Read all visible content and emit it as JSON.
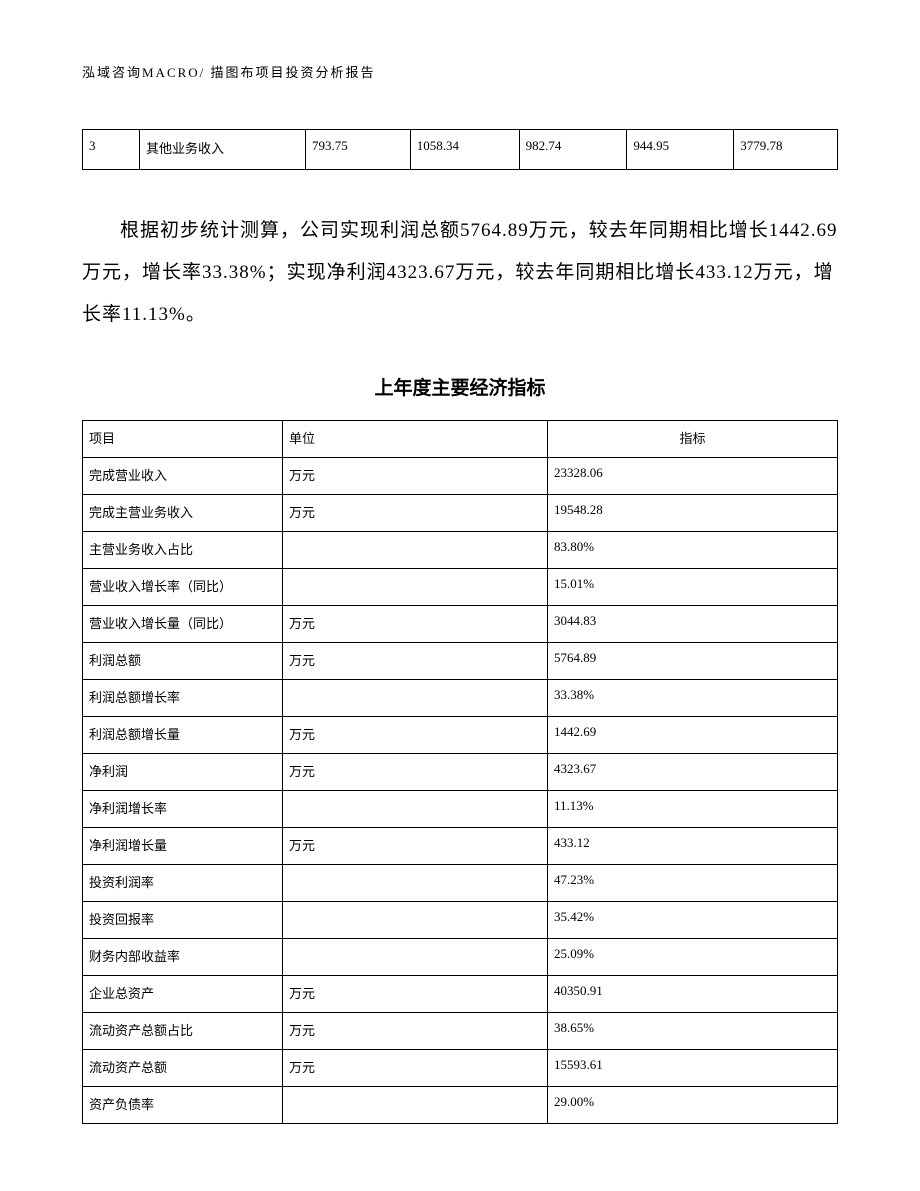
{
  "header": {
    "text": "泓域咨询MACRO/    描图布项目投资分析报告"
  },
  "top_table": {
    "row": {
      "c1": "3",
      "c2": "其他业务收入",
      "c3": "793.75",
      "c4": "1058.34",
      "c5": "982.74",
      "c6": "944.95",
      "c7": "3779.78"
    }
  },
  "paragraph": {
    "text": "根据初步统计测算，公司实现利润总额5764.89万元，较去年同期相比增长1442.69万元，增长率33.38%；实现净利润4323.67万元，较去年同期相比增长433.12万元，增长率11.13%。"
  },
  "section_title": "上年度主要经济指标",
  "main_table": {
    "headers": {
      "h1": "项目",
      "h2": "单位",
      "h3": "指标"
    },
    "rows": [
      {
        "c1": "完成营业收入",
        "c2": "万元",
        "c3": "23328.06"
      },
      {
        "c1": "完成主营业务收入",
        "c2": "万元",
        "c3": "19548.28"
      },
      {
        "c1": "主营业务收入占比",
        "c2": "",
        "c3": "83.80%"
      },
      {
        "c1": "营业收入增长率（同比）",
        "c2": "",
        "c3": "15.01%"
      },
      {
        "c1": "营业收入增长量（同比）",
        "c2": "万元",
        "c3": "3044.83"
      },
      {
        "c1": "利润总额",
        "c2": "万元",
        "c3": "5764.89"
      },
      {
        "c1": "利润总额增长率",
        "c2": "",
        "c3": "33.38%"
      },
      {
        "c1": "利润总额增长量",
        "c2": "万元",
        "c3": "1442.69"
      },
      {
        "c1": "净利润",
        "c2": "万元",
        "c3": "4323.67"
      },
      {
        "c1": "净利润增长率",
        "c2": "",
        "c3": "11.13%"
      },
      {
        "c1": "净利润增长量",
        "c2": "万元",
        "c3": "433.12"
      },
      {
        "c1": "投资利润率",
        "c2": "",
        "c3": "47.23%"
      },
      {
        "c1": "投资回报率",
        "c2": "",
        "c3": "35.42%"
      },
      {
        "c1": "财务内部收益率",
        "c2": "",
        "c3": "25.09%"
      },
      {
        "c1": "企业总资产",
        "c2": "万元",
        "c3": "40350.91"
      },
      {
        "c1": "流动资产总额占比",
        "c2": "万元",
        "c3": "38.65%"
      },
      {
        "c1": "流动资产总额",
        "c2": "万元",
        "c3": "15593.61"
      },
      {
        "c1": "资产负债率",
        "c2": "",
        "c3": "29.00%"
      }
    ]
  }
}
